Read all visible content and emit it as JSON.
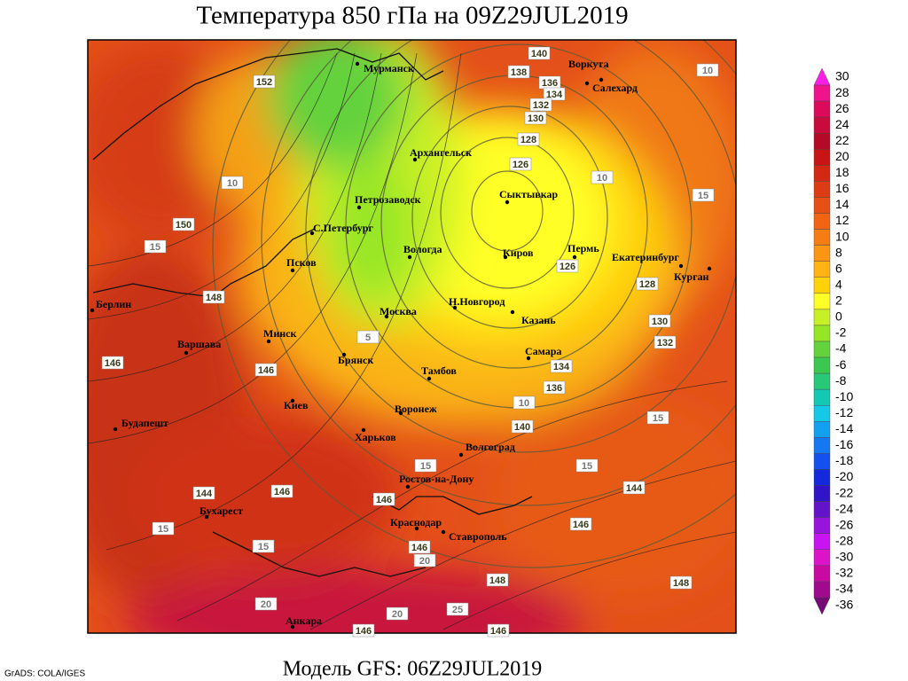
{
  "title": "Температура 850 гПа на 09Z29JUL2019",
  "model": "Модель GFS: 06Z29JUL2019",
  "credit": "GrADS: COLA/IGES",
  "cities": [
    "Мурманск",
    "Воркута",
    "Салехард",
    "Архангельск",
    "Сыктывкар",
    "Петрозаводск",
    "С.Петербург",
    "Вологда",
    "Киров",
    "Пермь",
    "Екатеринбург",
    "Курган",
    "Псков",
    "Н.Новгород",
    "Москва",
    "Казань",
    "Берлин",
    "Варшава",
    "Минск",
    "Брянск",
    "Самара",
    "Тамбов",
    "Киев",
    "Воронеж",
    "Будапешт",
    "Харьков",
    "Волгоград",
    "Ростов-на-Дону",
    "Бухарест",
    "Краснодар",
    "Ставрополь",
    "Анкара"
  ],
  "height_labels": [
    152,
    150,
    148,
    146,
    146,
    144,
    146,
    146,
    146,
    148,
    146,
    144,
    148,
    146,
    146,
    140,
    138,
    136,
    134,
    132,
    130,
    128,
    126,
    126,
    128,
    130,
    132,
    134,
    136,
    140
  ],
  "temperature_labels": [
    15,
    10,
    15,
    15,
    20,
    15,
    10,
    15,
    15,
    20,
    25,
    10,
    15,
    10,
    5,
    20
  ],
  "colorbar": {
    "levels": [
      30,
      28,
      26,
      24,
      22,
      20,
      18,
      16,
      14,
      12,
      10,
      8,
      6,
      4,
      2,
      0,
      -2,
      -4,
      -6,
      -8,
      -10,
      -12,
      -14,
      -16,
      -18,
      -20,
      -22,
      -24,
      -26,
      -28,
      -30,
      -32,
      -34,
      -36
    ],
    "colors": [
      "#ff1ee6",
      "#f0148c",
      "#dc0a5a",
      "#c80a3c",
      "#b40a28",
      "#c81414",
      "#d22814",
      "#dc3c14",
      "#e65014",
      "#f06414",
      "#f57d14",
      "#fa9614",
      "#ffb414",
      "#ffd20a",
      "#ffff28",
      "#c8f028",
      "#96e628",
      "#64d23c",
      "#3cc850",
      "#28c878",
      "#14c8b4",
      "#14c8e6",
      "#14a0f0",
      "#1478f0",
      "#1450f0",
      "#1428dc",
      "#3214c8",
      "#6414c8",
      "#9614dc",
      "#c814f0",
      "#dc14c8",
      "#c80aa0",
      "#a00a8c",
      "#780a78"
    ]
  }
}
